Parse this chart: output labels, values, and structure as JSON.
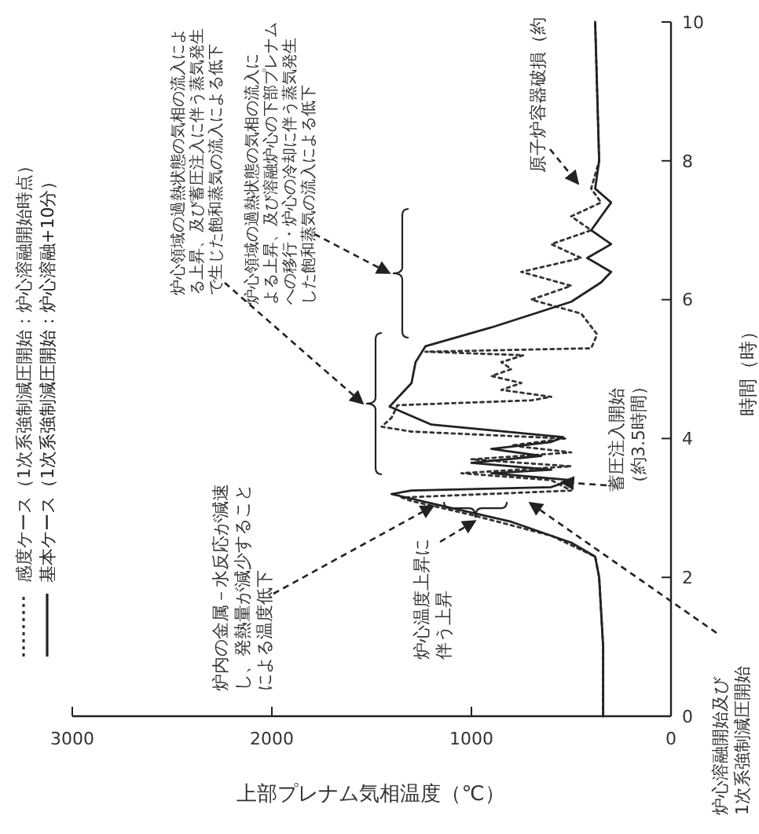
{
  "chart_data": {
    "type": "line",
    "xlabel": "上部プレナム気相温度（℃）",
    "ylabel": "時間（時）",
    "xlim": [
      3000,
      0
    ],
    "xticks": [
      3000,
      2000,
      1000,
      0
    ],
    "ylim": [
      0,
      10
    ],
    "yticks": [
      0,
      2,
      4,
      6,
      8,
      10
    ],
    "legend": "bottom left",
    "grid": false,
    "marker": "none",
    "series": [
      {
        "name": "感度ケース（1次系強制減圧開始：炉心溶融開始時点）",
        "color": "#333333",
        "line_style": "dotted",
        "x": [
          340,
          340,
          360,
          380,
          600,
          1000,
          1300,
          1350,
          500,
          600,
          1050,
          500,
          1000,
          500,
          800,
          530,
          1300,
          1450,
          1400,
          1370,
          700,
          600,
          850,
          750,
          900,
          800,
          850,
          740,
          1230,
          400,
          370,
          450,
          700,
          500,
          750,
          450,
          600,
          400,
          500,
          350,
          400,
          360,
          370,
          380
        ],
        "values": [
          0,
          1,
          2,
          2.3,
          2.6,
          2.9,
          3.1,
          3.15,
          3.25,
          3.4,
          3.5,
          3.6,
          3.7,
          3.8,
          3.9,
          4.0,
          4.1,
          4.17,
          4.3,
          4.48,
          4.55,
          4.6,
          4.7,
          4.8,
          4.9,
          5.0,
          5.1,
          5.2,
          5.25,
          5.3,
          5.5,
          5.8,
          6.0,
          6.2,
          6.4,
          6.6,
          6.8,
          7.0,
          7.2,
          7.4,
          7.6,
          8,
          9,
          10
        ]
      },
      {
        "name": "基本ケース（1次系強制減圧開始：炉心溶融+10分）",
        "color": "#222222",
        "line_style": "solid",
        "x": [
          340,
          340,
          360,
          380,
          500,
          800,
          1100,
          1400,
          1300,
          600,
          500,
          900,
          600,
          1000,
          650,
          900,
          600,
          540,
          1200,
          1410,
          1300,
          1280,
          1230,
          900,
          500,
          350,
          300,
          420,
          300,
          400,
          350,
          300,
          380,
          360,
          370,
          380
        ],
        "values": [
          0,
          1,
          2,
          2.3,
          2.5,
          2.8,
          3.0,
          3.2,
          3.25,
          3.3,
          3.4,
          3.5,
          3.55,
          3.65,
          3.75,
          3.85,
          3.95,
          4.02,
          4.2,
          4.46,
          4.8,
          5.1,
          5.33,
          5.6,
          5.97,
          6.25,
          6.4,
          6.6,
          6.8,
          7.0,
          7.2,
          7.4,
          7.6,
          8,
          9,
          10
        ]
      }
    ],
    "annotations": [
      "炉心溶融開始及び1次系強制減圧開始",
      {
        "text": "蓄圧注入開始（約3.5時間）",
        "x": 550,
        "y": 3.37
      },
      "原子炉容器破損（約",
      {
        "text": "炉内の金属－水反応が減速し、発熱量が減少することによる温度低下",
        "x": 1190,
        "y": 3.03
      },
      {
        "text": "炉心温度上昇に伴う上昇",
        "x": 980,
        "y": 2.86
      },
      "炉心領域の過熱状態の気相の流入による上昇、及び蓄圧注入に伴う蒸気発生で生じた飽和蒸気の流入による低下",
      "炉心領域の過熱状態の気相の流入による上昇、及び溶融炉心の下部プレナムへの移行・炉心の冷却に伴う蒸気発生した飽和蒸気の流入による低下"
    ]
  }
}
